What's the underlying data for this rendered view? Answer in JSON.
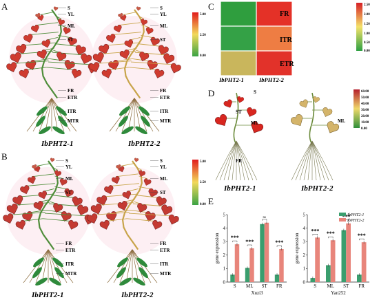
{
  "panels": {
    "A": "A",
    "B": "B",
    "C": "C",
    "D": "D",
    "E": "E"
  },
  "organs": {
    "S": "S",
    "YL": "YL",
    "ML": "ML",
    "ST": "ST",
    "FR": "FR",
    "ETR": "ETR",
    "ITR": "ITR",
    "MTR": "MTR"
  },
  "genes": {
    "g1": "IbPHT2-1",
    "g2": "IbPHT2-2"
  },
  "scale_ab": {
    "max": "5.00",
    "mid": "2.50",
    "min": "0.00"
  },
  "scale_d": {
    "v0": "60.00",
    "v1": "50.00",
    "v2": "40.00",
    "v3": "30.00",
    "v4": "20.00",
    "v5": "10.00",
    "v6": "0.00"
  },
  "heatmap_c": {
    "rows": [
      "FR",
      "ITR",
      "ETR"
    ],
    "cols": [
      "IbPHT2-1",
      "IbPHT2-2"
    ],
    "scale": {
      "v0": "2.50",
      "v1": "2.00",
      "v2": "1.50",
      "v3": "1.00",
      "v4": "0.50",
      "v5": "0.00"
    },
    "colors": [
      [
        "#2f9e3e",
        "#e43127"
      ],
      [
        "#34a146",
        "#ee7d43"
      ],
      [
        "#c9b65c",
        "#e2322a"
      ]
    ]
  },
  "chart_data": [
    {
      "type": "bar",
      "title": "",
      "xlabel": "Xuzi3",
      "ylabel": "gene expression",
      "ylim": [
        0,
        5
      ],
      "yticks": [
        "0",
        "1",
        "2",
        "3",
        "4",
        "5"
      ],
      "categories": [
        "S",
        "ML",
        "ST",
        "FR"
      ],
      "series": [
        {
          "name": "IbPHT2-1",
          "values": [
            0.55,
            1.05,
            4.3,
            0.55
          ]
        },
        {
          "name": "IbPHT2-2",
          "values": [
            2.8,
            2.5,
            4.4,
            2.45
          ]
        }
      ],
      "significance": [
        "***",
        "***",
        "ns",
        "***"
      ]
    },
    {
      "type": "bar",
      "title": "",
      "xlabel": "Yan252",
      "ylabel": "gene expression",
      "ylim": [
        0,
        5
      ],
      "yticks": [
        "0",
        "1",
        "2",
        "3",
        "4",
        "5"
      ],
      "categories": [
        "S",
        "ML",
        "ST",
        "FR"
      ],
      "series": [
        {
          "name": "IbPHT2-1",
          "values": [
            0.3,
            1.25,
            3.85,
            0.55
          ]
        },
        {
          "name": "IbPHT2-2",
          "values": [
            3.3,
            3.1,
            4.35,
            2.95
          ]
        }
      ],
      "significance": [
        "***",
        "***",
        "***",
        "***"
      ]
    }
  ],
  "legend_e": {
    "s1": "IbPHT2-1",
    "s2": "IbPHT2-2",
    "c1": "#3a9e6e",
    "c2": "#e8857b"
  }
}
